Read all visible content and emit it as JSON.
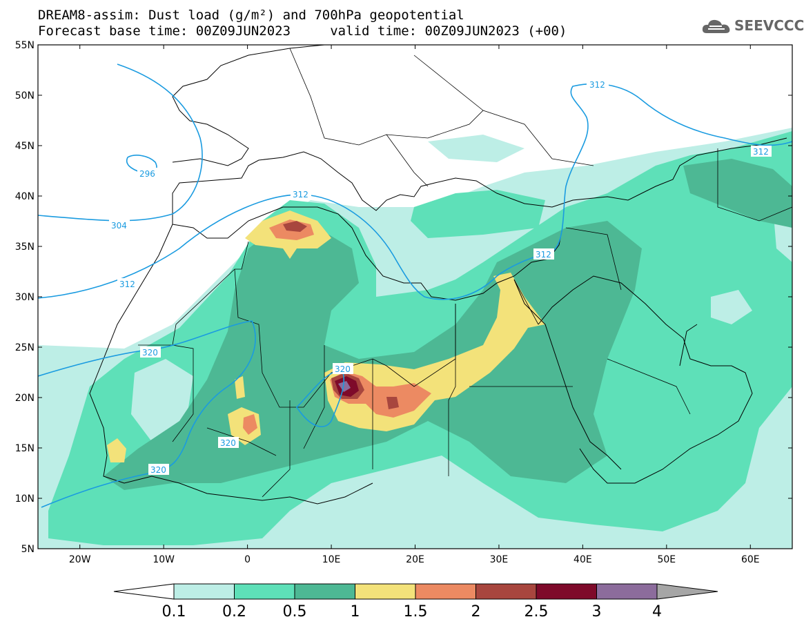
{
  "title": {
    "line1": "DREAM8-assim: Dust load (g/m²) and 700hPa geopotential",
    "line2": "Forecast base time: 00Z09JUN2023     valid time: 00Z09JUN2023 (+00)"
  },
  "logo": {
    "icon": "cloud-icon",
    "text": "SEEVCCC"
  },
  "map": {
    "lat_labels": [
      "55N",
      "50N",
      "45N",
      "40N",
      "35N",
      "30N",
      "25N",
      "20N",
      "15N",
      "10N",
      "5N"
    ],
    "lon_labels": [
      "20W",
      "10W",
      "0",
      "10E",
      "20E",
      "30E",
      "40E",
      "50E",
      "60E"
    ],
    "lat_range": [
      5,
      55
    ],
    "lon_range": [
      -25,
      65
    ]
  },
  "geopotential_labels": [
    "312",
    "296",
    "304",
    "312",
    "312",
    "320",
    "320",
    "320",
    "320",
    "312",
    "312"
  ],
  "colorbar": {
    "ticks": [
      "0.1",
      "0.2",
      "0.5",
      "1",
      "1.5",
      "2",
      "2.5",
      "3",
      "4"
    ],
    "colors": [
      "#bdeee6",
      "#5ee0b8",
      "#4db894",
      "#f3e27a",
      "#ec8a62",
      "#a8463e",
      "#7e0a2a",
      "#8c6c9c",
      "#a6a6a6"
    ]
  }
}
